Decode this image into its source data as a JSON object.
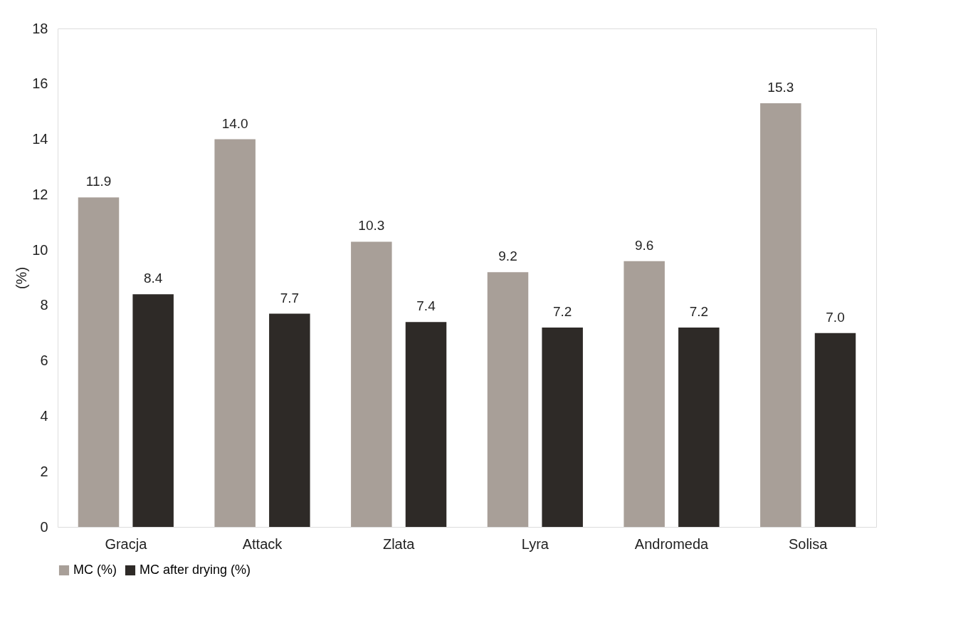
{
  "chart_data": {
    "type": "bar",
    "ylabel": "(%)",
    "categories": [
      "Gracja",
      "Attack",
      "Zlata",
      "Lyra",
      "Andromeda",
      "Solisa"
    ],
    "series": [
      {
        "name": "MC (%)",
        "color": "#a89f98",
        "values": [
          11.9,
          14.0,
          10.3,
          9.2,
          9.6,
          15.3
        ],
        "value_labels": [
          "11.9",
          "14.0",
          "10.3",
          "9.2",
          "9.6",
          "15.3"
        ]
      },
      {
        "name": "MC after drying (%)",
        "color": "#2e2a27",
        "values": [
          8.4,
          7.7,
          7.4,
          7.2,
          7.2,
          7.0
        ],
        "value_labels": [
          "8.4",
          "7.7",
          "7.4",
          "7.2",
          "7.2",
          "7.0"
        ]
      }
    ],
    "ylim": [
      0,
      18
    ],
    "yticks": [
      0,
      2,
      4,
      6,
      8,
      10,
      12,
      14,
      16,
      18
    ],
    "grid": false,
    "legend": "bottom"
  }
}
